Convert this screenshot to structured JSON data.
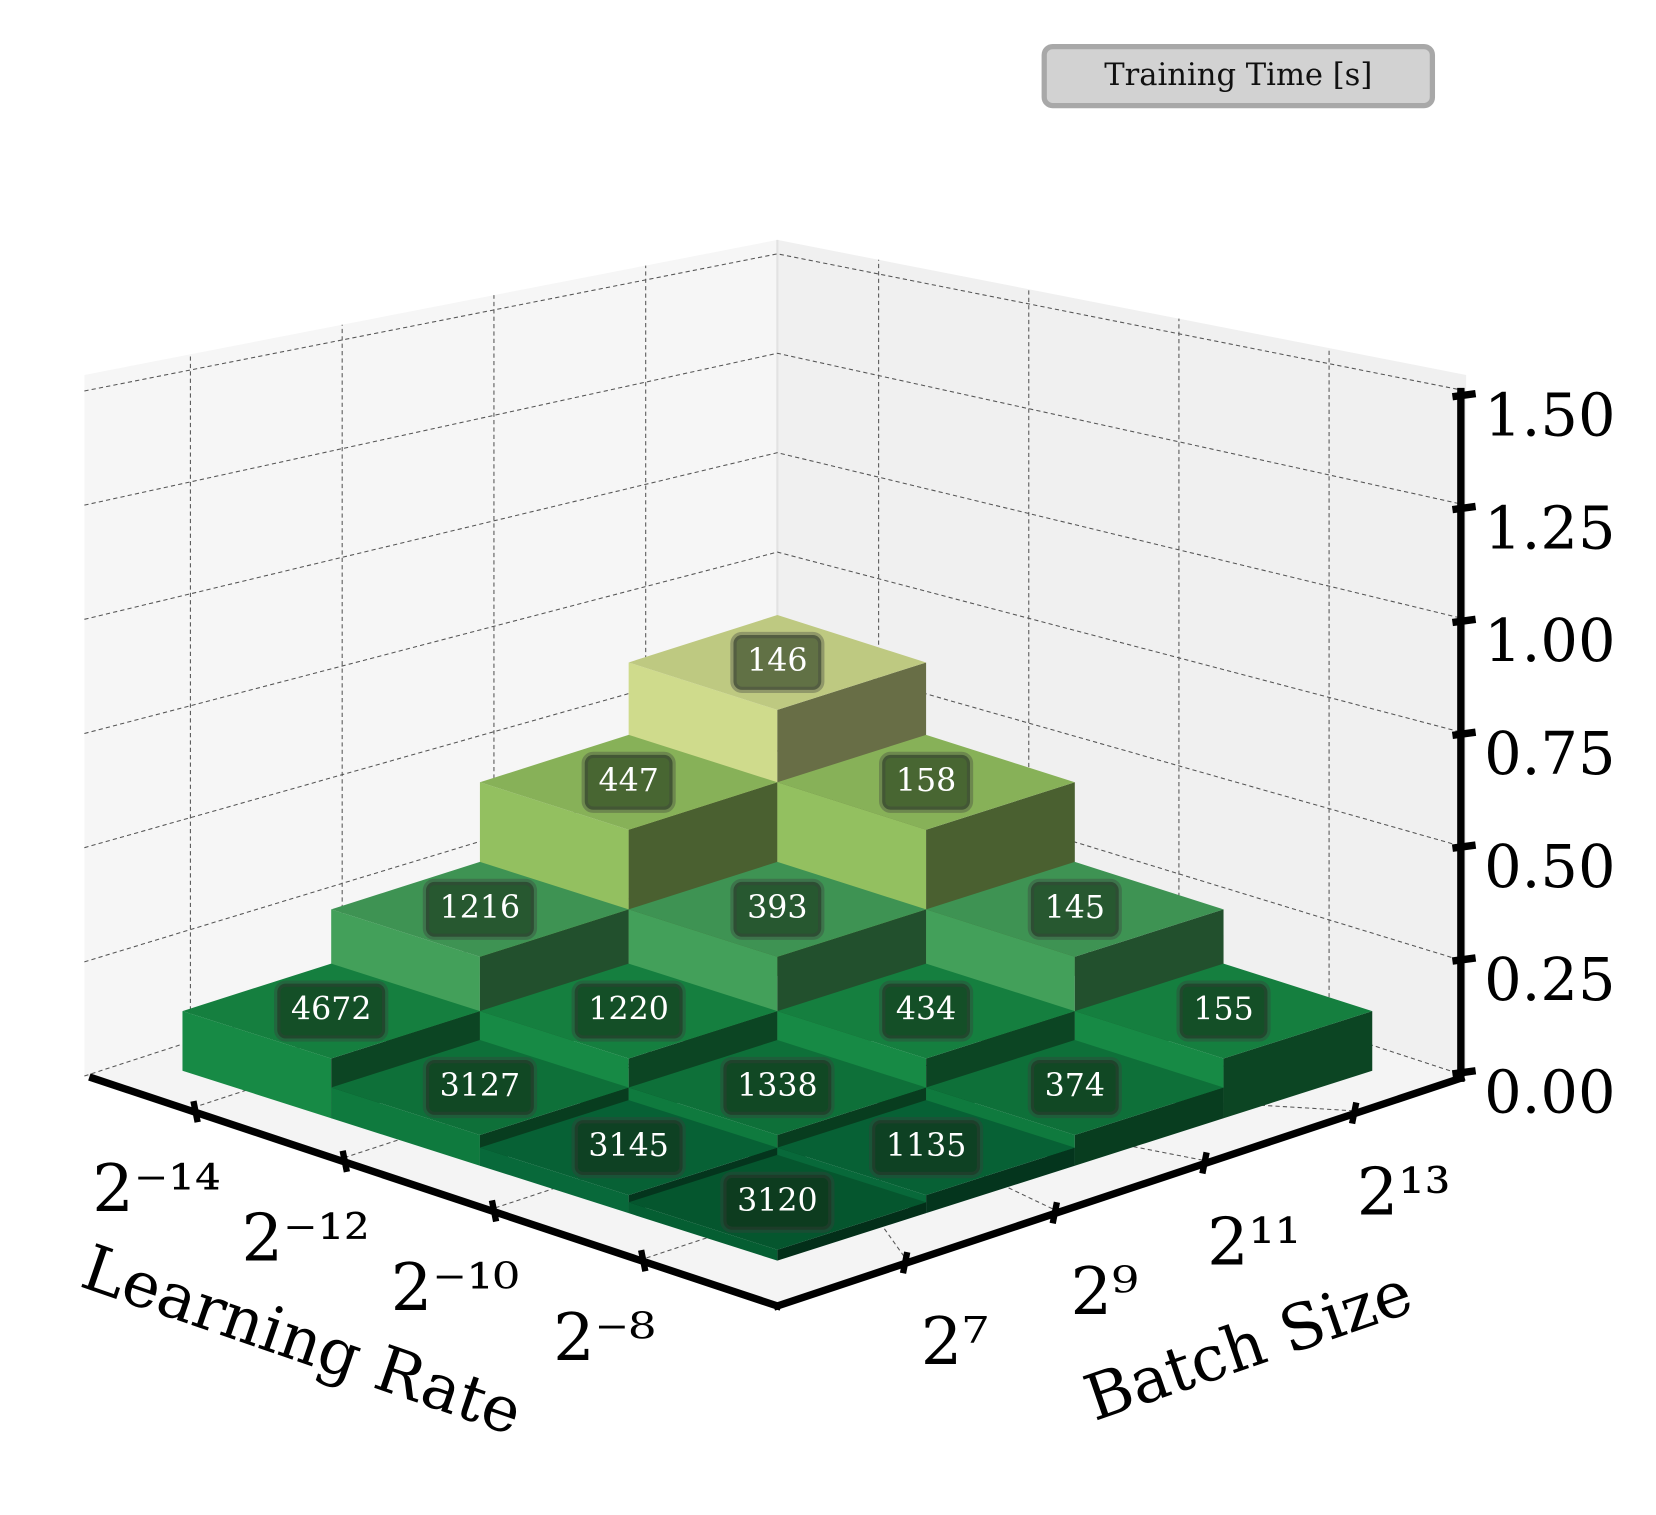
{
  "chart_data": {
    "type": "bar3d",
    "legend_title": "Training Time [s]",
    "x_label": "Learning Rate",
    "y_label": "Batch Size",
    "x_categories": [
      "2⁻¹⁴",
      "2⁻¹²",
      "2⁻¹⁰",
      "2⁻⁸"
    ],
    "y_categories": [
      "2⁷",
      "2⁹",
      "2¹¹",
      "2¹³"
    ],
    "z": [
      [
        0.165,
        0.315,
        0.535,
        0.735
      ],
      [
        0.085,
        0.165,
        0.315,
        0.535
      ],
      [
        0.05,
        0.085,
        0.165,
        0.315
      ],
      [
        0.03,
        0.05,
        0.085,
        0.165
      ]
    ],
    "annotations": [
      [
        4672,
        1216,
        447,
        146
      ],
      [
        3127,
        1220,
        393,
        158
      ],
      [
        3145,
        1338,
        434,
        145
      ],
      [
        3120,
        1135,
        374,
        155
      ]
    ],
    "colors": [
      [
        "#178a45",
        "#43a05a",
        "#93c060",
        "#cfdb8c"
      ],
      [
        "#0f7a3e",
        "#178a45",
        "#43a05a",
        "#93c060"
      ],
      [
        "#08693a",
        "#0f7a3e",
        "#178a45",
        "#43a05a"
      ],
      [
        "#055e32",
        "#08693a",
        "#0f7a3e",
        "#178a45"
      ]
    ],
    "zlim": [
      0,
      1.535
    ],
    "zticks": [
      {
        "value": 0,
        "label": "0.00"
      },
      {
        "value": 0.25,
        "label": "0.25"
      },
      {
        "value": 0.5,
        "label": "0.50"
      },
      {
        "value": 0.75,
        "label": "0.75"
      },
      {
        "value": 1,
        "label": "1.00"
      },
      {
        "value": 1.25,
        "label": "1.25"
      },
      {
        "value": 1.5,
        "label": "1.50"
      }
    ],
    "grid": true
  }
}
